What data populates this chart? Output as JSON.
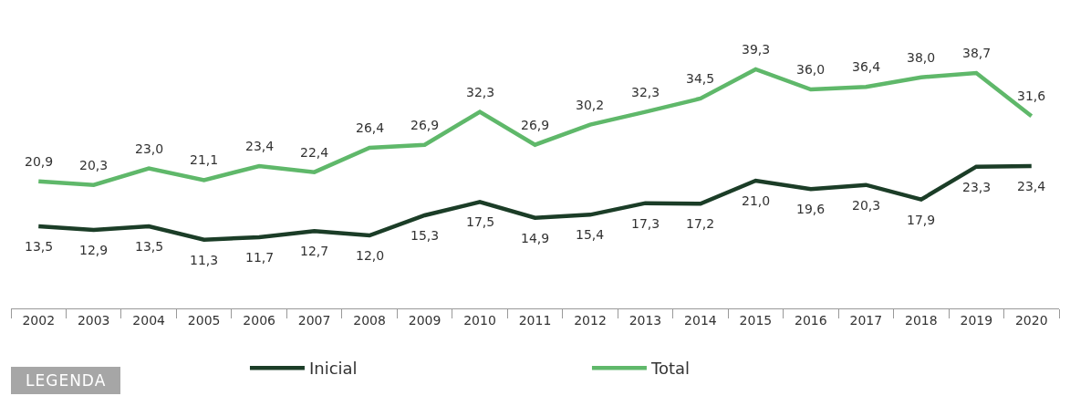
{
  "chart_data": {
    "type": "line",
    "legend_title": "LEGENDA",
    "legend": "bottom",
    "marker": "none",
    "line_style": "solid",
    "grid": false,
    "tick_labels": "x",
    "categories": [
      "2002",
      "2003",
      "2004",
      "2005",
      "2006",
      "2007",
      "2008",
      "2009",
      "2010",
      "2011",
      "2012",
      "2013",
      "2014",
      "2015",
      "2016",
      "2017",
      "2018",
      "2019",
      "2020"
    ],
    "series": [
      {
        "name": "Inicial",
        "color": "#1b3d27",
        "values": [
          13.5,
          12.9,
          13.5,
          11.3,
          11.7,
          12.7,
          12.0,
          15.3,
          17.5,
          14.9,
          15.4,
          17.3,
          17.2,
          21.0,
          19.6,
          20.3,
          17.9,
          23.3,
          23.4
        ],
        "value_labels": [
          "13,5",
          "12,9",
          "13,5",
          "11,3",
          "11,7",
          "12,7",
          "12,0",
          "15,3",
          "17,5",
          "14,9",
          "15,4",
          "17,3",
          "17,2",
          "21,0",
          "19,6",
          "20,3",
          "17,9",
          "23,3",
          "23,4"
        ]
      },
      {
        "name": "Total",
        "color": "#5fb86a",
        "values": [
          20.9,
          20.3,
          23.0,
          21.1,
          23.4,
          22.4,
          26.4,
          26.9,
          32.3,
          26.9,
          30.2,
          32.3,
          34.5,
          39.3,
          36.0,
          36.4,
          38.0,
          38.7,
          31.6
        ],
        "value_labels": [
          "20,9",
          "20,3",
          "23,0",
          "21,1",
          "23,4",
          "22,4",
          "26,4",
          "26,9",
          "32,3",
          "26,9",
          "30,2",
          "32,3",
          "34,5",
          "39,3",
          "36,0",
          "36,4",
          "38,0",
          "38,7",
          "31,6"
        ]
      }
    ]
  }
}
